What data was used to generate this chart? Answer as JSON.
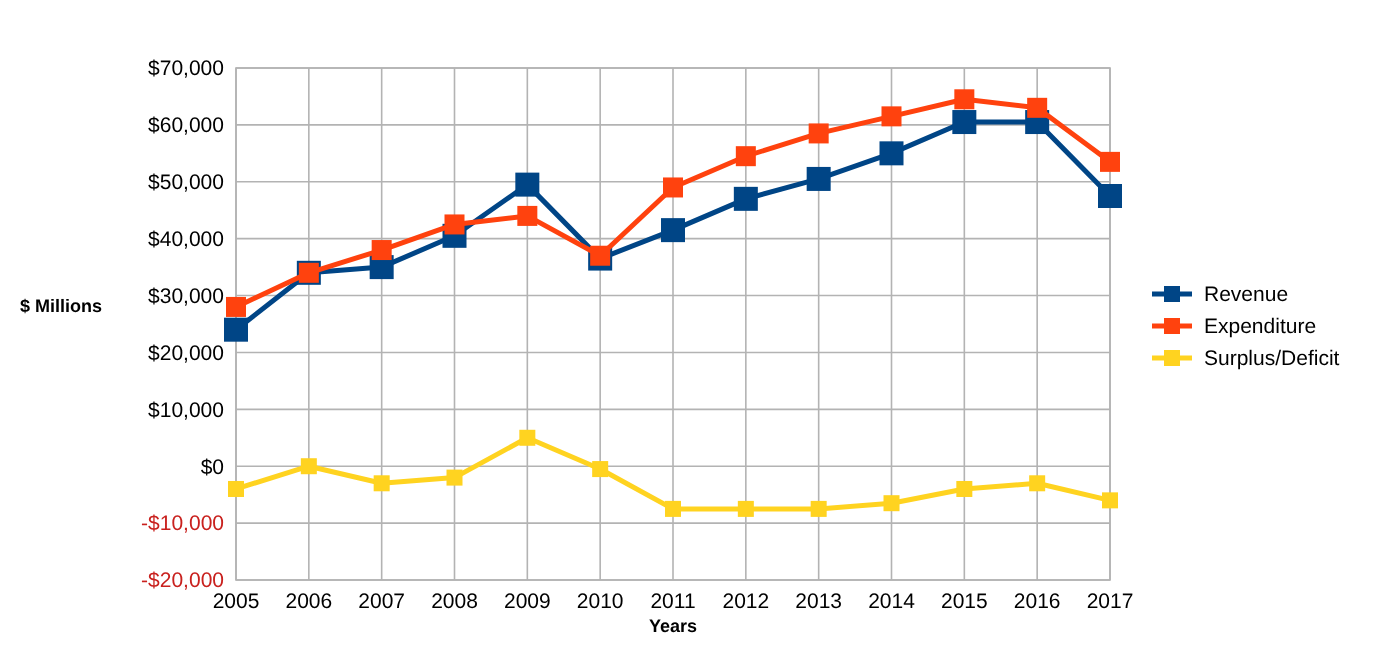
{
  "chart_data": {
    "type": "line",
    "xlabel": "Years",
    "ylabel": "$ Millions",
    "categories": [
      "2005",
      "2006",
      "2007",
      "2008",
      "2009",
      "2010",
      "2011",
      "2012",
      "2013",
      "2014",
      "2015",
      "2016",
      "2017"
    ],
    "series": [
      {
        "name": "Revenue",
        "color": "#004586",
        "values": [
          24000,
          34000,
          35000,
          40500,
          49500,
          36500,
          41500,
          47000,
          50500,
          55000,
          60500,
          60500,
          47500
        ]
      },
      {
        "name": "Expenditure",
        "color": "#ff420e",
        "values": [
          28000,
          34000,
          38000,
          42500,
          44000,
          37000,
          49000,
          54500,
          58500,
          61500,
          64500,
          63000,
          53500
        ]
      },
      {
        "name": "Surplus/Deficit",
        "color": "#ffd320",
        "values": [
          -4000,
          0,
          -3000,
          -2000,
          5000,
          -500,
          -7500,
          -7500,
          -7500,
          -6500,
          -4000,
          -3000,
          -6000
        ]
      }
    ],
    "ylim": [
      -20000,
      70000
    ],
    "yticks": [
      {
        "value": -20000,
        "label": "-$20,000"
      },
      {
        "value": -10000,
        "label": "-$10,000"
      },
      {
        "value": 0,
        "label": "$0"
      },
      {
        "value": 10000,
        "label": "$10,000"
      },
      {
        "value": 20000,
        "label": "$20,000"
      },
      {
        "value": 30000,
        "label": "$30,000"
      },
      {
        "value": 40000,
        "label": "$40,000"
      },
      {
        "value": 50000,
        "label": "$50,000"
      },
      {
        "value": 60000,
        "label": "$60,000"
      },
      {
        "value": 70000,
        "label": "$70,000"
      }
    ],
    "grid": true,
    "legend": "right",
    "marker": "square",
    "line_style": "solid"
  }
}
